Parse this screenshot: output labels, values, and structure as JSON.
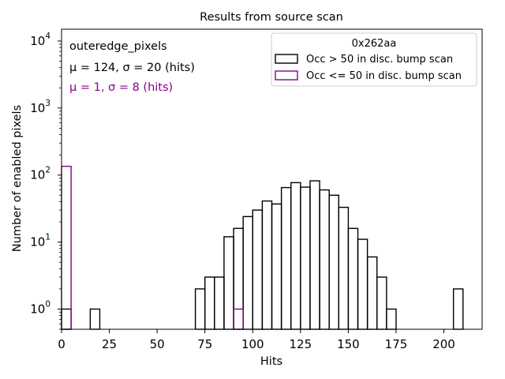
{
  "chart_data": {
    "type": "histogram",
    "title": "Results from source scan",
    "xlabel": "Hits",
    "ylabel": "Number of enabled pixels",
    "yscale": "log",
    "xlim": [
      0,
      220
    ],
    "ylim": [
      0.5,
      15000
    ],
    "bin_width": 5,
    "x_ticks": [
      0,
      25,
      50,
      75,
      100,
      125,
      150,
      175,
      200
    ],
    "y_ticks": [
      {
        "value": 1,
        "base": "10",
        "exp": "0"
      },
      {
        "value": 10,
        "base": "10",
        "exp": "1"
      },
      {
        "value": 100,
        "base": "10",
        "exp": "2"
      },
      {
        "value": 1000,
        "base": "10",
        "exp": "3"
      },
      {
        "value": 10000,
        "base": "10",
        "exp": "4"
      }
    ],
    "legend": {
      "title": "0x262aa",
      "placement": "upper right",
      "entries": [
        "Occ > 50 in disc. bump scan",
        "Occ <= 50 in disc. bump scan"
      ]
    },
    "annotations": [
      {
        "text": "outeredge_pixels",
        "color": "#000000"
      },
      {
        "text": "μ = 124, σ = 20 (hits)",
        "color": "#000000"
      },
      {
        "text": "μ = 1, σ = 8 (hits)",
        "color": "#8b008b"
      }
    ],
    "series": [
      {
        "name": "Occ > 50 in disc. bump scan",
        "color": "#000000",
        "bins": [
          {
            "x0": 0,
            "count": 1
          },
          {
            "x0": 15,
            "count": 1
          },
          {
            "x0": 70,
            "count": 2
          },
          {
            "x0": 75,
            "count": 3
          },
          {
            "x0": 80,
            "count": 3
          },
          {
            "x0": 85,
            "count": 12
          },
          {
            "x0": 90,
            "count": 16
          },
          {
            "x0": 95,
            "count": 24
          },
          {
            "x0": 100,
            "count": 30
          },
          {
            "x0": 105,
            "count": 41
          },
          {
            "x0": 110,
            "count": 37
          },
          {
            "x0": 115,
            "count": 65
          },
          {
            "x0": 120,
            "count": 77
          },
          {
            "x0": 125,
            "count": 66
          },
          {
            "x0": 130,
            "count": 82
          },
          {
            "x0": 135,
            "count": 60
          },
          {
            "x0": 140,
            "count": 50
          },
          {
            "x0": 145,
            "count": 33
          },
          {
            "x0": 150,
            "count": 16
          },
          {
            "x0": 155,
            "count": 11
          },
          {
            "x0": 160,
            "count": 6
          },
          {
            "x0": 165,
            "count": 3
          },
          {
            "x0": 170,
            "count": 1
          },
          {
            "x0": 205,
            "count": 2
          }
        ]
      },
      {
        "name": "Occ <= 50 in disc. bump scan",
        "color": "#8b008b",
        "bins": [
          {
            "x0": 0,
            "count": 135
          },
          {
            "x0": 90,
            "count": 1
          }
        ]
      }
    ]
  }
}
